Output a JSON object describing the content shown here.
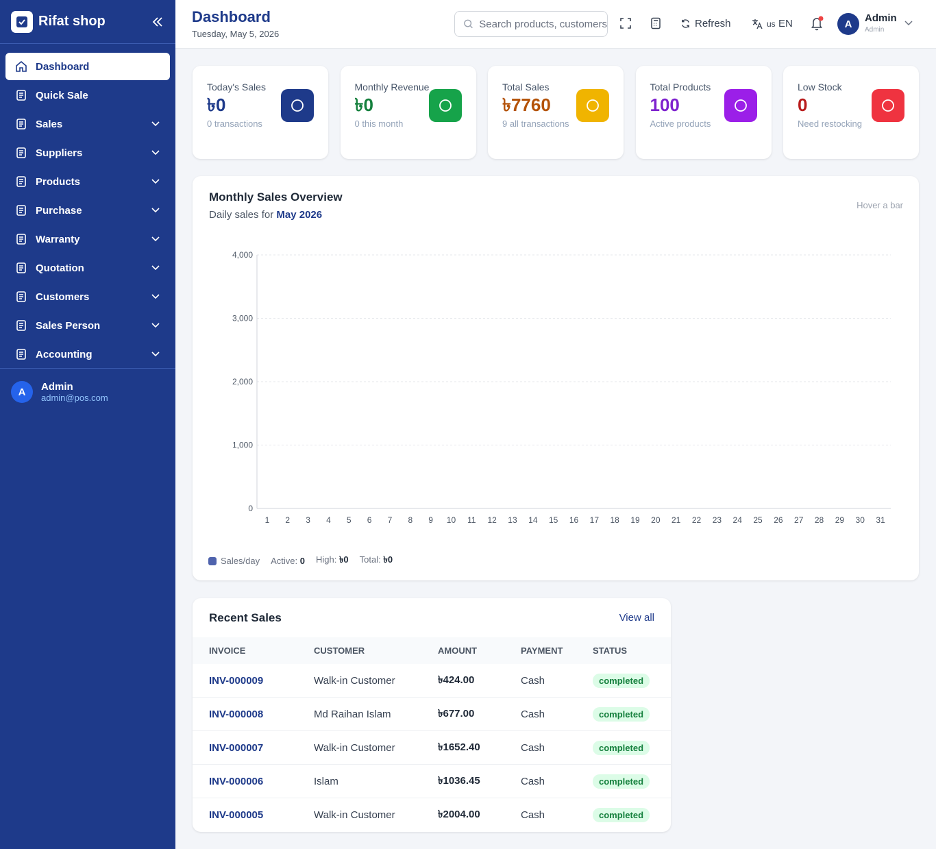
{
  "sidebar": {
    "brand": "Rifat shop",
    "menu": [
      {
        "label": "Dashboard",
        "active": true,
        "expandable": false
      },
      {
        "label": "Quick Sale",
        "active": false,
        "expandable": false
      },
      {
        "label": "Sales",
        "active": false,
        "expandable": true
      },
      {
        "label": "Suppliers",
        "active": false,
        "expandable": true
      },
      {
        "label": "Products",
        "active": false,
        "expandable": true
      },
      {
        "label": "Purchase",
        "active": false,
        "expandable": true
      },
      {
        "label": "Warranty",
        "active": false,
        "expandable": true
      },
      {
        "label": "Quotation",
        "active": false,
        "expandable": true
      },
      {
        "label": "Customers",
        "active": false,
        "expandable": true
      },
      {
        "label": "Sales Person",
        "active": false,
        "expandable": true
      },
      {
        "label": "Accounting",
        "active": false,
        "expandable": true
      }
    ],
    "user": {
      "avatar": "A",
      "name": "Admin",
      "email": "admin@pos.com"
    }
  },
  "header": {
    "title": "Dashboard",
    "date": "Tuesday, May 5, 2026",
    "search_placeholder": "Search products, customers",
    "refresh": "Refresh",
    "lang_flag": "us",
    "lang": "EN",
    "user": {
      "avatar": "A",
      "name": "Admin",
      "role": "Admin"
    }
  },
  "cards": [
    {
      "title": "Today's Sales",
      "value": "৳0",
      "note": "0 transactions",
      "color": "#1e3a8a",
      "value_color": "#1e3a8a"
    },
    {
      "title": "Monthly Revenue",
      "value": "৳0",
      "note": "0 this month",
      "color": "#16a34a",
      "value_color": "#15803d"
    },
    {
      "title": "Total Sales",
      "value": "৳7760",
      "note": "9 all transactions",
      "color": "#f0b400",
      "value_color": "#b45309"
    },
    {
      "title": "Total Products",
      "value": "100",
      "note": "Active products",
      "color": "#9b1fe8",
      "value_color": "#7e22ce"
    },
    {
      "title": "Low Stock",
      "value": "0",
      "note": "Need restocking",
      "color": "#ef3340",
      "value_color": "#b91c1c"
    }
  ],
  "chart_data": {
    "type": "bar",
    "title": "Monthly Sales Overview",
    "subtitle": "Daily sales for",
    "subtitle_period": "May 2026",
    "hint": "Hover a bar",
    "categories": [
      "1",
      "2",
      "3",
      "4",
      "5",
      "6",
      "7",
      "8",
      "9",
      "10",
      "11",
      "12",
      "13",
      "14",
      "15",
      "16",
      "17",
      "18",
      "19",
      "20",
      "21",
      "22",
      "23",
      "24",
      "25",
      "26",
      "27",
      "28",
      "29",
      "30",
      "31"
    ],
    "series": [
      {
        "name": "Sales/day",
        "color": "#4f63ad",
        "values": [
          0,
          0,
          0,
          0,
          0,
          0,
          0,
          0,
          0,
          0,
          0,
          0,
          0,
          0,
          0,
          0,
          0,
          0,
          0,
          0,
          0,
          0,
          0,
          0,
          0,
          0,
          0,
          0,
          0,
          0,
          0
        ]
      }
    ],
    "ylim": [
      0,
      4000
    ],
    "yticks": [
      0,
      {
        "value": 1000,
        "label": "1,000"
      },
      {
        "value": 2000,
        "label": "2,000"
      },
      {
        "value": 3000,
        "label": "3,000"
      },
      {
        "value": 4000,
        "label": "4,000"
      }
    ],
    "grid": true,
    "stats": [
      {
        "label": "Active:",
        "value": "0"
      },
      {
        "label": "High:",
        "value": "৳0"
      },
      {
        "label": "Total:",
        "value": "৳0"
      }
    ]
  },
  "recent_sales": {
    "title": "Recent Sales",
    "view_all": "View all",
    "columns": [
      "INVOICE",
      "CUSTOMER",
      "AMOUNT",
      "PAYMENT",
      "STATUS"
    ],
    "rows": [
      [
        "INV-000009",
        "Walk-in Customer",
        "৳424.00",
        "Cash",
        "completed"
      ],
      [
        "INV-000008",
        "Md Raihan Islam",
        "৳677.00",
        "Cash",
        "completed"
      ],
      [
        "INV-000007",
        "Walk-in Customer",
        "৳1652.40",
        "Cash",
        "completed"
      ],
      [
        "INV-000006",
        "Islam",
        "৳1036.45",
        "Cash",
        "completed"
      ],
      [
        "INV-000005",
        "Walk-in Customer",
        "৳2004.00",
        "Cash",
        "completed"
      ]
    ]
  }
}
